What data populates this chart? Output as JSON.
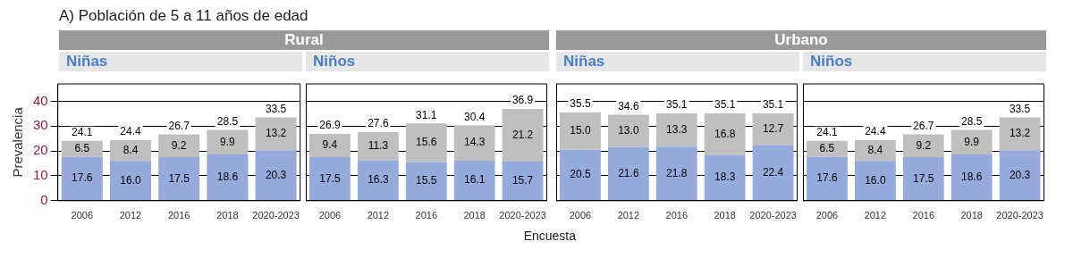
{
  "chart_data": [
    {
      "type": "bar",
      "title": "Rural",
      "subtitle": "Niñas",
      "annotations": [
        "A) Población de 5 a 11 años de edad"
      ],
      "ylabel": "Prevalencia",
      "categories": [
        "2006",
        "2012",
        "2016",
        "2018",
        "2020-2023"
      ],
      "stacked": true,
      "ylim": [
        0,
        47
      ],
      "yticks": [
        0,
        10,
        20,
        30,
        40
      ],
      "grid": "y",
      "series": [
        {
          "color": "#95abdc",
          "values": [
            17.6,
            16.0,
            17.5,
            18.6,
            20.3
          ],
          "value_labels": [
            "17.6",
            "16.0",
            "17.5",
            "18.6",
            "20.3"
          ]
        },
        {
          "color": "#bfbfbf",
          "values": [
            6.5,
            8.4,
            9.2,
            9.9,
            13.2
          ],
          "value_labels": [
            "6.5",
            "8.4",
            "9.2",
            "9.9",
            "13.2"
          ]
        }
      ],
      "totals": [
        "24.1",
        "24.4",
        "26.7",
        "28.5",
        "33.5"
      ]
    },
    {
      "type": "bar",
      "subtitle": "Niños",
      "xlabel": "Encuesta",
      "categories": [
        "2006",
        "2012",
        "2016",
        "2018",
        "2020-2023"
      ],
      "stacked": true,
      "ylim": [
        0,
        47
      ],
      "yticks": [
        0,
        10,
        20,
        30,
        40
      ],
      "grid": "y",
      "tick_labels": "x",
      "series": [
        {
          "color": "#95abdc",
          "values": [
            17.5,
            16.3,
            15.5,
            16.1,
            15.7
          ],
          "value_labels": [
            "17.5",
            "16.3",
            "15.5",
            "16.1",
            "15.7"
          ]
        },
        {
          "color": "#bfbfbf",
          "values": [
            9.4,
            11.3,
            15.6,
            14.3,
            21.2
          ],
          "value_labels": [
            "9.4",
            "11.3",
            "15.6",
            "14.3",
            "21.2"
          ]
        }
      ],
      "totals": [
        "26.9",
        "27.6",
        "31.1",
        "30.4",
        "36.9"
      ]
    },
    {
      "type": "bar",
      "title": "Urbano",
      "subtitle": "Niñas",
      "categories": [
        "2006",
        "2012",
        "2016",
        "2018",
        "2020-2023"
      ],
      "stacked": true,
      "ylim": [
        0,
        47
      ],
      "yticks": [
        0,
        10,
        20,
        30,
        40
      ],
      "grid": "y",
      "tick_labels": "x",
      "series": [
        {
          "color": "#95abdc",
          "values": [
            20.5,
            21.6,
            21.8,
            18.3,
            22.4
          ],
          "value_labels": [
            "20.5",
            "21.6",
            "21.8",
            "18.3",
            "22.4"
          ]
        },
        {
          "color": "#bfbfbf",
          "values": [
            15.0,
            13.0,
            13.3,
            16.8,
            12.7
          ],
          "value_labels": [
            "15.0",
            "13.0",
            "13.3",
            "16.8",
            "12.7"
          ]
        }
      ],
      "totals": [
        "35.5",
        "34.6",
        "35.1",
        "35.1",
        "35.1"
      ]
    },
    {
      "type": "bar",
      "subtitle": "Niños",
      "categories": [
        "2006",
        "2012",
        "2016",
        "2018",
        "2020-2023"
      ],
      "stacked": true,
      "ylim": [
        0,
        47
      ],
      "yticks": [
        0,
        10,
        20,
        30,
        40
      ],
      "grid": "y",
      "tick_labels": "x",
      "series": [
        {
          "color": "#95abdc",
          "values": [
            17.6,
            16.0,
            17.5,
            18.6,
            20.3
          ],
          "value_labels": [
            "17.6",
            "16.0",
            "17.5",
            "18.6",
            "20.3"
          ]
        },
        {
          "color": "#bfbfbf",
          "values": [
            6.5,
            8.4,
            9.2,
            9.9,
            13.2
          ],
          "value_labels": [
            "6.5",
            "8.4",
            "9.2",
            "9.9",
            "13.2"
          ]
        }
      ],
      "totals": [
        "24.1",
        "24.4",
        "26.7",
        "28.5",
        "33.5"
      ]
    }
  ]
}
